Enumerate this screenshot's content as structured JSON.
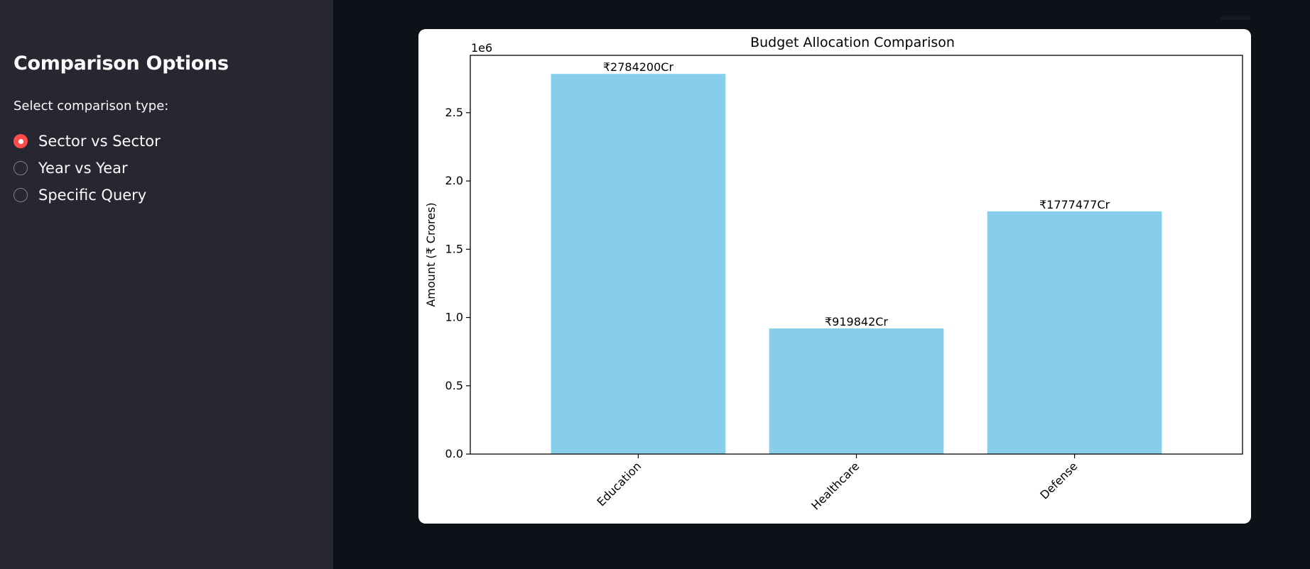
{
  "sidebar": {
    "title": "Comparison Options",
    "radio_label": "Select comparison type:",
    "options": [
      {
        "label": "Sector vs Sector",
        "selected": true
      },
      {
        "label": "Year vs Year",
        "selected": false
      },
      {
        "label": "Specific Query",
        "selected": false
      }
    ],
    "accent_color": "#ff4b4b"
  },
  "chart_data": {
    "type": "bar",
    "title": "Budget Allocation Comparison",
    "xlabel": "",
    "ylabel": "Amount (₹ Crores)",
    "offset_label": "1e6",
    "categories": [
      "Education",
      "Healthcare",
      "Defense"
    ],
    "values": [
      2784200,
      919842,
      1777477
    ],
    "data_labels": [
      "₹2784200Cr",
      "₹919842Cr",
      "₹1777477Cr"
    ],
    "ylim": [
      0,
      2920000
    ],
    "yticks": [
      0,
      500000,
      1000000,
      1500000,
      2000000,
      2500000
    ],
    "ytick_labels": [
      "0.0",
      "0.5",
      "1.0",
      "1.5",
      "2.0",
      "2.5"
    ],
    "bar_color": "#87ceeb",
    "grid": false,
    "legend": "none"
  }
}
